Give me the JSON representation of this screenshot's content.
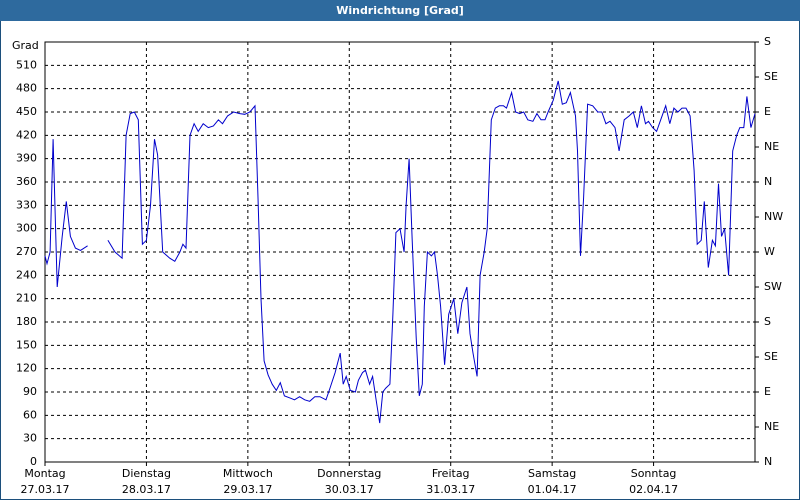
{
  "chart_data": {
    "type": "line",
    "title": "Windrichtung [Grad]",
    "y_label": "Grad",
    "xlim": [
      0,
      7
    ],
    "xticks": [
      {
        "value": 0,
        "label": "Montag"
      },
      {
        "value": 1,
        "label": "Dienstag"
      },
      {
        "value": 2,
        "label": "Mittwoch"
      },
      {
        "value": 3,
        "label": "Donnerstag"
      },
      {
        "value": 4,
        "label": "Freitag"
      },
      {
        "value": 5,
        "label": "Samstag"
      },
      {
        "value": 6,
        "label": "Sonntag"
      }
    ],
    "xtick_dates": [
      "27.03.17",
      "28.03.17",
      "29.03.17",
      "30.03.17",
      "31.03.17",
      "01.04.17",
      "02.04.17"
    ],
    "ylim": [
      0,
      540
    ],
    "yticks": [
      0,
      30,
      60,
      90,
      120,
      150,
      180,
      210,
      240,
      270,
      300,
      330,
      360,
      390,
      420,
      450,
      480,
      510
    ],
    "y2lim": [
      0,
      540
    ],
    "y2ticks": [
      {
        "value": 0,
        "label": "N"
      },
      {
        "value": 45,
        "label": "NE"
      },
      {
        "value": 90,
        "label": "E"
      },
      {
        "value": 135,
        "label": "SE"
      },
      {
        "value": 180,
        "label": "S"
      },
      {
        "value": 225,
        "label": "SW"
      },
      {
        "value": 270,
        "label": "W"
      },
      {
        "value": 315,
        "label": "NW"
      },
      {
        "value": 360,
        "label": "N"
      },
      {
        "value": 405,
        "label": "NE"
      },
      {
        "value": 450,
        "label": "E"
      },
      {
        "value": 495,
        "label": "SE"
      },
      {
        "value": 540,
        "label": "S"
      }
    ],
    "grid": true,
    "color": "#0000cc",
    "x": [
      0,
      0.02,
      0.05,
      0.08,
      0.12,
      0.17,
      0.21,
      0.25,
      0.3,
      0.35,
      0.42,
      0.5,
      0.62,
      0.69,
      0.76,
      0.8,
      0.84,
      0.88,
      0.92,
      0.96,
      1.0,
      1.04,
      1.08,
      1.11,
      1.16,
      1.23,
      1.28,
      1.33,
      1.36,
      1.39,
      1.43,
      1.47,
      1.51,
      1.56,
      1.61,
      1.66,
      1.71,
      1.75,
      1.8,
      1.86,
      1.92,
      1.97,
      2.02,
      2.07,
      2.1,
      2.13,
      2.16,
      2.2,
      2.24,
      2.28,
      2.32,
      2.36,
      2.42,
      2.46,
      2.51,
      2.56,
      2.61,
      2.66,
      2.71,
      2.77,
      2.81,
      2.86,
      2.91,
      2.94,
      2.97,
      3.01,
      3.06,
      3.09,
      3.13,
      3.16,
      3.2,
      3.23,
      3.27,
      3.3,
      3.33,
      3.36,
      3.4,
      3.43,
      3.46,
      3.5,
      3.54,
      3.56,
      3.59,
      3.62,
      3.66,
      3.69,
      3.72,
      3.74,
      3.77,
      3.81,
      3.84,
      3.87,
      3.9,
      3.94,
      3.98,
      4.03,
      4.07,
      4.11,
      4.16,
      4.19,
      4.22,
      4.26,
      4.29,
      4.33,
      4.36,
      4.4,
      4.44,
      4.48,
      4.52,
      4.55,
      4.6,
      4.64,
      4.68,
      4.72,
      4.76,
      4.81,
      4.85,
      4.89,
      4.93,
      4.96,
      5.01,
      5.06,
      5.1,
      5.14,
      5.18,
      5.23,
      5.25,
      5.28,
      5.31,
      5.35,
      5.4,
      5.45,
      5.49,
      5.53,
      5.57,
      5.62,
      5.66,
      5.71,
      5.76,
      5.8,
      5.84,
      5.88,
      5.92,
      5.95,
      5.99,
      6.03,
      6.07,
      6.12,
      6.16,
      6.2,
      6.24,
      6.28,
      6.32,
      6.36,
      6.4,
      6.43,
      6.47,
      6.5,
      6.54,
      6.58,
      6.61,
      6.64,
      6.67,
      6.7,
      6.74,
      6.78,
      6.82,
      6.85,
      6.89,
      6.92,
      6.96,
      7.0
    ],
    "values": [
      265,
      255,
      270,
      415,
      225,
      290,
      335,
      290,
      275,
      272,
      278,
      null,
      285,
      270,
      262,
      420,
      448,
      450,
      440,
      280,
      285,
      330,
      415,
      395,
      270,
      262,
      258,
      270,
      280,
      275,
      420,
      435,
      425,
      435,
      430,
      432,
      440,
      435,
      445,
      450,
      448,
      447,
      450,
      458,
      340,
      210,
      130,
      112,
      100,
      92,
      102,
      85,
      82,
      80,
      84,
      80,
      78,
      84,
      84,
      80,
      95,
      115,
      140,
      100,
      110,
      92,
      90,
      105,
      115,
      118,
      100,
      110,
      75,
      50,
      90,
      95,
      100,
      190,
      295,
      300,
      270,
      330,
      390,
      285,
      160,
      85,
      100,
      200,
      270,
      265,
      270,
      240,
      200,
      125,
      190,
      210,
      165,
      205,
      225,
      165,
      140,
      110,
      240,
      270,
      300,
      440,
      455,
      458,
      458,
      455,
      475,
      450,
      448,
      450,
      440,
      438,
      448,
      440,
      440,
      450,
      465,
      490,
      460,
      462,
      475,
      445,
      400,
      265,
      340,
      460,
      458,
      450,
      450,
      435,
      438,
      430,
      400,
      440,
      445,
      450,
      430,
      458,
      435,
      438,
      430,
      425,
      440,
      458,
      435,
      455,
      450,
      455,
      455,
      445,
      375,
      280,
      285,
      335,
      250,
      285,
      278,
      358,
      290,
      300,
      240,
      400,
      420,
      430,
      430,
      470,
      430,
      448
    ]
  }
}
